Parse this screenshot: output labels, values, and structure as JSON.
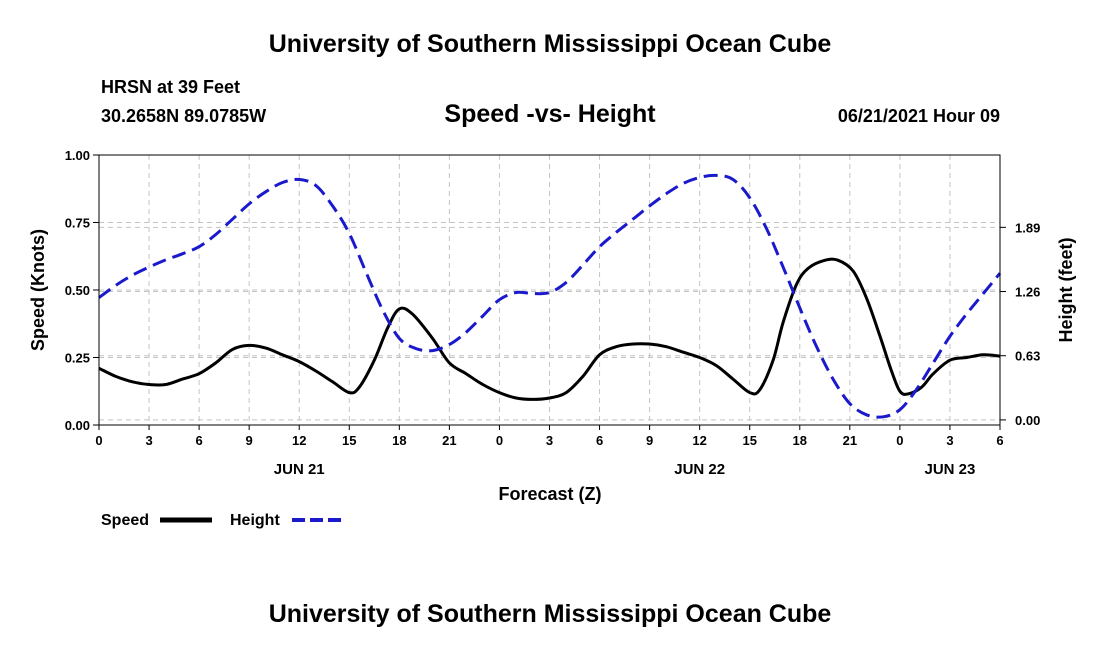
{
  "header": {
    "title": "University of Southern Mississippi Ocean Cube",
    "station_name": "HRSN at 39 Feet",
    "coordinates": "30.2658N  89.0785W",
    "datetime": "06/21/2021 Hour 09"
  },
  "footer": {
    "title": "University of Southern Mississippi Ocean Cube"
  },
  "chart_data": {
    "type": "line",
    "title": "Speed -vs- Height",
    "xlabel": "Forecast (Z)",
    "ylabel": "Speed (Knots)",
    "y2label": "Height (feet)",
    "x_range_hours": [
      0,
      54
    ],
    "ylim": [
      0,
      1.0
    ],
    "y2lim": [
      -0.05,
      2.6
    ],
    "x_tick_hours": [
      0,
      3,
      6,
      9,
      12,
      15,
      18,
      21,
      24,
      27,
      30,
      33,
      36,
      39,
      42,
      45,
      48,
      51,
      54
    ],
    "x_tick_labels": [
      "0",
      "3",
      "6",
      "9",
      "12",
      "15",
      "18",
      "21",
      "0",
      "3",
      "6",
      "9",
      "12",
      "15",
      "18",
      "21",
      "0",
      "3",
      "6"
    ],
    "date_labels": [
      {
        "label": "JUN 21",
        "hour": 12
      },
      {
        "label": "JUN 22",
        "hour": 36
      },
      {
        "label": "JUN 23",
        "hour": 51
      }
    ],
    "y_ticks": [
      0.0,
      0.25,
      0.5,
      0.75,
      1.0
    ],
    "y_tick_labels": [
      "0.00",
      "0.25",
      "0.50",
      "0.75",
      "1.00"
    ],
    "y2_ticks": [
      0.0,
      0.63,
      1.26,
      1.89
    ],
    "y2_tick_labels": [
      "0.00",
      "0.63",
      "1.26",
      "1.89"
    ],
    "grid": true,
    "legend_position": "bottom-left",
    "series": [
      {
        "name": "Speed",
        "axis": "left",
        "color": "#000000",
        "dash": "solid",
        "points": [
          [
            0,
            0.21
          ],
          [
            1,
            0.18
          ],
          [
            2,
            0.16
          ],
          [
            3,
            0.15
          ],
          [
            4,
            0.15
          ],
          [
            5,
            0.17
          ],
          [
            6,
            0.19
          ],
          [
            7,
            0.23
          ],
          [
            8,
            0.28
          ],
          [
            9,
            0.295
          ],
          [
            10,
            0.285
          ],
          [
            11,
            0.26
          ],
          [
            12,
            0.235
          ],
          [
            13,
            0.2
          ],
          [
            14,
            0.16
          ],
          [
            15,
            0.12
          ],
          [
            15.6,
            0.14
          ],
          [
            16.5,
            0.24
          ],
          [
            17.3,
            0.36
          ],
          [
            18,
            0.43
          ],
          [
            18.8,
            0.41
          ],
          [
            20,
            0.32
          ],
          [
            21,
            0.23
          ],
          [
            22,
            0.19
          ],
          [
            23,
            0.15
          ],
          [
            24,
            0.12
          ],
          [
            25,
            0.1
          ],
          [
            26,
            0.095
          ],
          [
            27,
            0.1
          ],
          [
            28,
            0.12
          ],
          [
            29,
            0.18
          ],
          [
            30,
            0.26
          ],
          [
            31,
            0.29
          ],
          [
            32,
            0.3
          ],
          [
            33,
            0.3
          ],
          [
            34,
            0.29
          ],
          [
            35,
            0.27
          ],
          [
            36,
            0.25
          ],
          [
            37,
            0.22
          ],
          [
            38,
            0.17
          ],
          [
            39,
            0.12
          ],
          [
            39.6,
            0.13
          ],
          [
            40.4,
            0.24
          ],
          [
            41,
            0.38
          ],
          [
            41.8,
            0.52
          ],
          [
            42.5,
            0.58
          ],
          [
            43.5,
            0.61
          ],
          [
            44.3,
            0.61
          ],
          [
            45.2,
            0.57
          ],
          [
            46,
            0.47
          ],
          [
            46.8,
            0.33
          ],
          [
            47.5,
            0.2
          ],
          [
            48,
            0.125
          ],
          [
            48.5,
            0.115
          ],
          [
            49.3,
            0.14
          ],
          [
            50,
            0.19
          ],
          [
            51,
            0.24
          ],
          [
            52,
            0.25
          ],
          [
            53,
            0.26
          ],
          [
            54,
            0.255
          ]
        ]
      },
      {
        "name": "Height",
        "axis": "right",
        "color": "#1a1acc",
        "dash": "dashed",
        "points": [
          [
            0,
            1.2
          ],
          [
            1,
            1.32
          ],
          [
            2,
            1.42
          ],
          [
            3,
            1.5
          ],
          [
            4,
            1.57
          ],
          [
            5,
            1.63
          ],
          [
            6,
            1.7
          ],
          [
            7,
            1.82
          ],
          [
            8,
            1.97
          ],
          [
            9,
            2.12
          ],
          [
            10,
            2.24
          ],
          [
            11,
            2.33
          ],
          [
            12,
            2.36
          ],
          [
            13,
            2.3
          ],
          [
            14,
            2.1
          ],
          [
            15,
            1.83
          ],
          [
            16,
            1.45
          ],
          [
            17,
            1.08
          ],
          [
            18,
            0.8
          ],
          [
            19,
            0.7
          ],
          [
            20,
            0.68
          ],
          [
            21,
            0.74
          ],
          [
            22,
            0.86
          ],
          [
            23,
            1.02
          ],
          [
            24,
            1.18
          ],
          [
            25,
            1.25
          ],
          [
            26,
            1.24
          ],
          [
            27,
            1.25
          ],
          [
            28,
            1.35
          ],
          [
            29,
            1.52
          ],
          [
            30,
            1.7
          ],
          [
            31,
            1.84
          ],
          [
            32,
            1.97
          ],
          [
            33,
            2.1
          ],
          [
            34,
            2.22
          ],
          [
            35,
            2.32
          ],
          [
            36,
            2.38
          ],
          [
            37,
            2.4
          ],
          [
            38,
            2.36
          ],
          [
            39,
            2.18
          ],
          [
            40,
            1.88
          ],
          [
            41,
            1.5
          ],
          [
            42,
            1.1
          ],
          [
            43,
            0.72
          ],
          [
            44,
            0.4
          ],
          [
            45,
            0.16
          ],
          [
            46,
            0.05
          ],
          [
            47,
            0.03
          ],
          [
            48,
            0.1
          ],
          [
            49,
            0.3
          ],
          [
            50,
            0.56
          ],
          [
            51,
            0.82
          ],
          [
            52,
            1.04
          ],
          [
            53,
            1.24
          ],
          [
            54,
            1.44
          ]
        ]
      }
    ]
  }
}
